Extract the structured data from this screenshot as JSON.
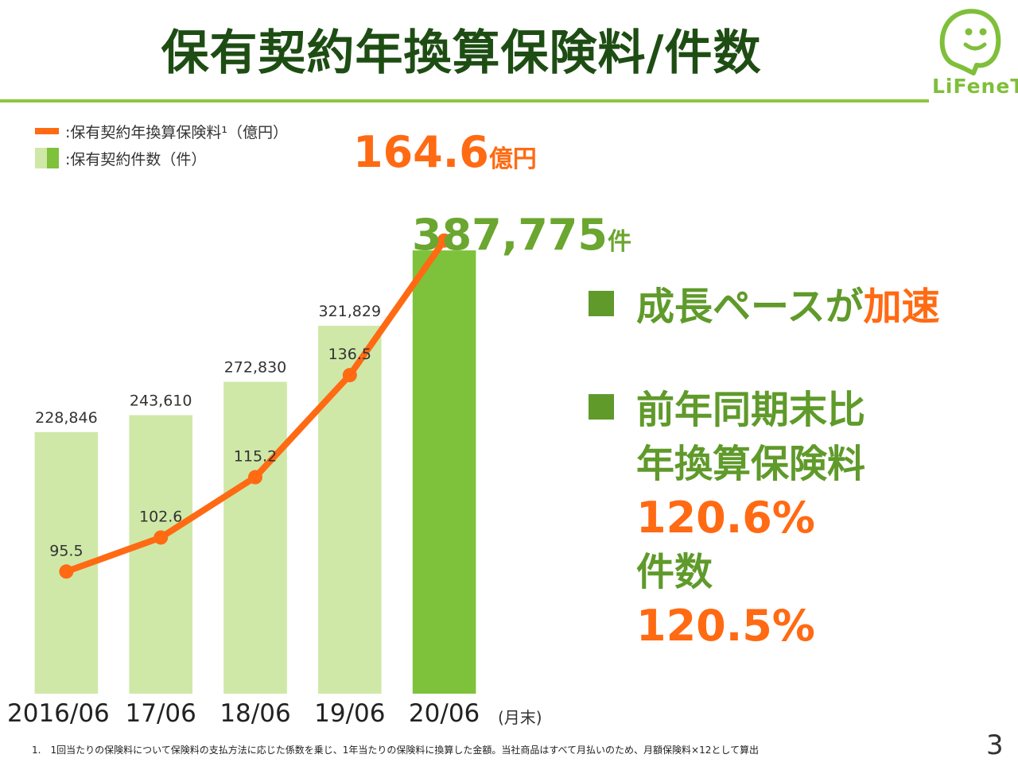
{
  "title": "保有契約年換算保険料/件数",
  "logo_text": "LiFeneT",
  "legend": {
    "premium_label": ":保有契約年換算保険料¹（億円）",
    "count_label": ":保有契約件数（件）"
  },
  "colors": {
    "line": "#ff6a13",
    "bar_past": "#cfe8a8",
    "bar_current": "#7dc23a",
    "title": "#1e4d14",
    "accent_green": "#5f9a2a"
  },
  "chart_data": {
    "type": "bar",
    "title": "保有契約年換算保険料/件数",
    "categories": [
      "2016/06",
      "17/06",
      "18/06",
      "19/06",
      "20/06"
    ],
    "x_unit_label": "(月末)",
    "series": [
      {
        "name": "保有契約件数（件）",
        "type": "bar",
        "values": [
          228846,
          243610,
          272830,
          321829,
          387775
        ],
        "labels": [
          "228,846",
          "243,610",
          "272,830",
          "321,829",
          ""
        ]
      },
      {
        "name": "保有契約年換算保険料（億円）",
        "type": "line",
        "values": [
          95.5,
          102.6,
          115.2,
          136.5,
          164.6
        ],
        "labels": [
          "95.5",
          "102.6",
          "115.2",
          "136.5",
          ""
        ]
      }
    ],
    "bar_ylim": [
      0,
      440000
    ],
    "line_ylim": [
      70,
      175
    ],
    "highlight_premium": {
      "value": "164.6",
      "unit": "億円"
    },
    "highlight_count": {
      "value": "387,775",
      "unit": "件"
    }
  },
  "points": {
    "p1_a": "成長ペースが",
    "p1_b": "加速",
    "p2_l1": "前年同期末比",
    "p2_l2": "年換算保険料",
    "p2_l3": "120.6%",
    "p2_l4": "件数",
    "p2_l5": "120.5%"
  },
  "footnote": "1.　1回当たりの保険料について保険料の支払方法に応じた係数を乗じ、1年当たりの保険料に換算した金額。当社商品はすべて月払いのため、月額保険料×12として算出",
  "page_number": "3"
}
